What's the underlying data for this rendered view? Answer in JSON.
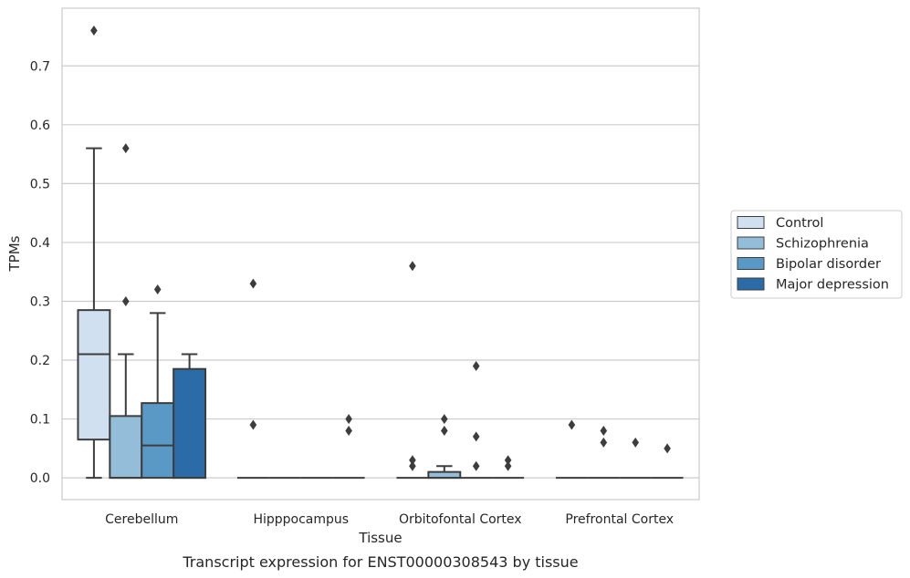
{
  "chart_data": {
    "type": "box",
    "title": "",
    "caption": "Transcript expression for ENST00000308543 by tissue",
    "xlabel": "Tissue",
    "ylabel": "TPMs",
    "ylim": [
      -0.037,
      0.798
    ],
    "yticks": [
      "0.0",
      "0.1",
      "0.2",
      "0.3",
      "0.4",
      "0.5",
      "0.6",
      "0.7"
    ],
    "grid": true,
    "legend_position": "right",
    "categories": [
      "Cerebellum",
      "Hipppocampus",
      "Orbitofontal Cortex",
      "Prefrontal Cortex"
    ],
    "series": [
      {
        "name": "Control",
        "color": "#d0e0f0",
        "boxes": [
          {
            "whislo": 0.0,
            "q1": 0.065,
            "med": 0.21,
            "q3": 0.285,
            "whishi": 0.56,
            "fliers": [
              0.76
            ]
          },
          {
            "whislo": 0.0,
            "q1": 0.0,
            "med": 0.0,
            "q3": 0.0,
            "whishi": 0.0,
            "fliers": [
              0.33,
              0.09
            ]
          },
          {
            "whislo": 0.0,
            "q1": 0.0,
            "med": 0.0,
            "q3": 0.0,
            "whishi": 0.0,
            "fliers": [
              0.36,
              0.03,
              0.02
            ]
          },
          {
            "whislo": 0.0,
            "q1": 0.0,
            "med": 0.0,
            "q3": 0.0,
            "whishi": 0.0,
            "fliers": [
              0.09
            ]
          }
        ]
      },
      {
        "name": "Schizophrenia",
        "color": "#93bdd9",
        "boxes": [
          {
            "whislo": 0.0,
            "q1": 0.0,
            "med": 0.0,
            "q3": 0.105,
            "whishi": 0.21,
            "fliers": [
              0.56,
              0.3
            ]
          },
          {
            "whislo": 0.0,
            "q1": 0.0,
            "med": 0.0,
            "q3": 0.0,
            "whishi": 0.0,
            "fliers": []
          },
          {
            "whislo": 0.0,
            "q1": 0.0,
            "med": 0.0,
            "q3": 0.01,
            "whishi": 0.02,
            "fliers": [
              0.1,
              0.08
            ]
          },
          {
            "whislo": 0.0,
            "q1": 0.0,
            "med": 0.0,
            "q3": 0.0,
            "whishi": 0.0,
            "fliers": [
              0.08,
              0.06
            ]
          }
        ]
      },
      {
        "name": "Bipolar disorder",
        "color": "#5a98c6",
        "boxes": [
          {
            "whislo": 0.0,
            "q1": 0.0,
            "med": 0.055,
            "q3": 0.127,
            "whishi": 0.28,
            "fliers": [
              0.32
            ]
          },
          {
            "whislo": 0.0,
            "q1": 0.0,
            "med": 0.0,
            "q3": 0.0,
            "whishi": 0.0,
            "fliers": []
          },
          {
            "whislo": 0.0,
            "q1": 0.0,
            "med": 0.0,
            "q3": 0.0,
            "whishi": 0.0,
            "fliers": [
              0.19,
              0.07,
              0.02
            ]
          },
          {
            "whislo": 0.0,
            "q1": 0.0,
            "med": 0.0,
            "q3": 0.0,
            "whishi": 0.0,
            "fliers": [
              0.06
            ]
          }
        ]
      },
      {
        "name": "Major depression",
        "color": "#2b6ca8",
        "boxes": [
          {
            "whislo": 0.0,
            "q1": 0.0,
            "med": 0.0,
            "q3": 0.185,
            "whishi": 0.21,
            "fliers": []
          },
          {
            "whislo": 0.0,
            "q1": 0.0,
            "med": 0.0,
            "q3": 0.0,
            "whishi": 0.0,
            "fliers": [
              0.1,
              0.08
            ]
          },
          {
            "whislo": 0.0,
            "q1": 0.0,
            "med": 0.0,
            "q3": 0.0,
            "whishi": 0.0,
            "fliers": [
              0.03,
              0.02
            ]
          },
          {
            "whislo": 0.0,
            "q1": 0.0,
            "med": 0.0,
            "q3": 0.0,
            "whishi": 0.0,
            "fliers": [
              0.05
            ]
          }
        ]
      }
    ]
  }
}
